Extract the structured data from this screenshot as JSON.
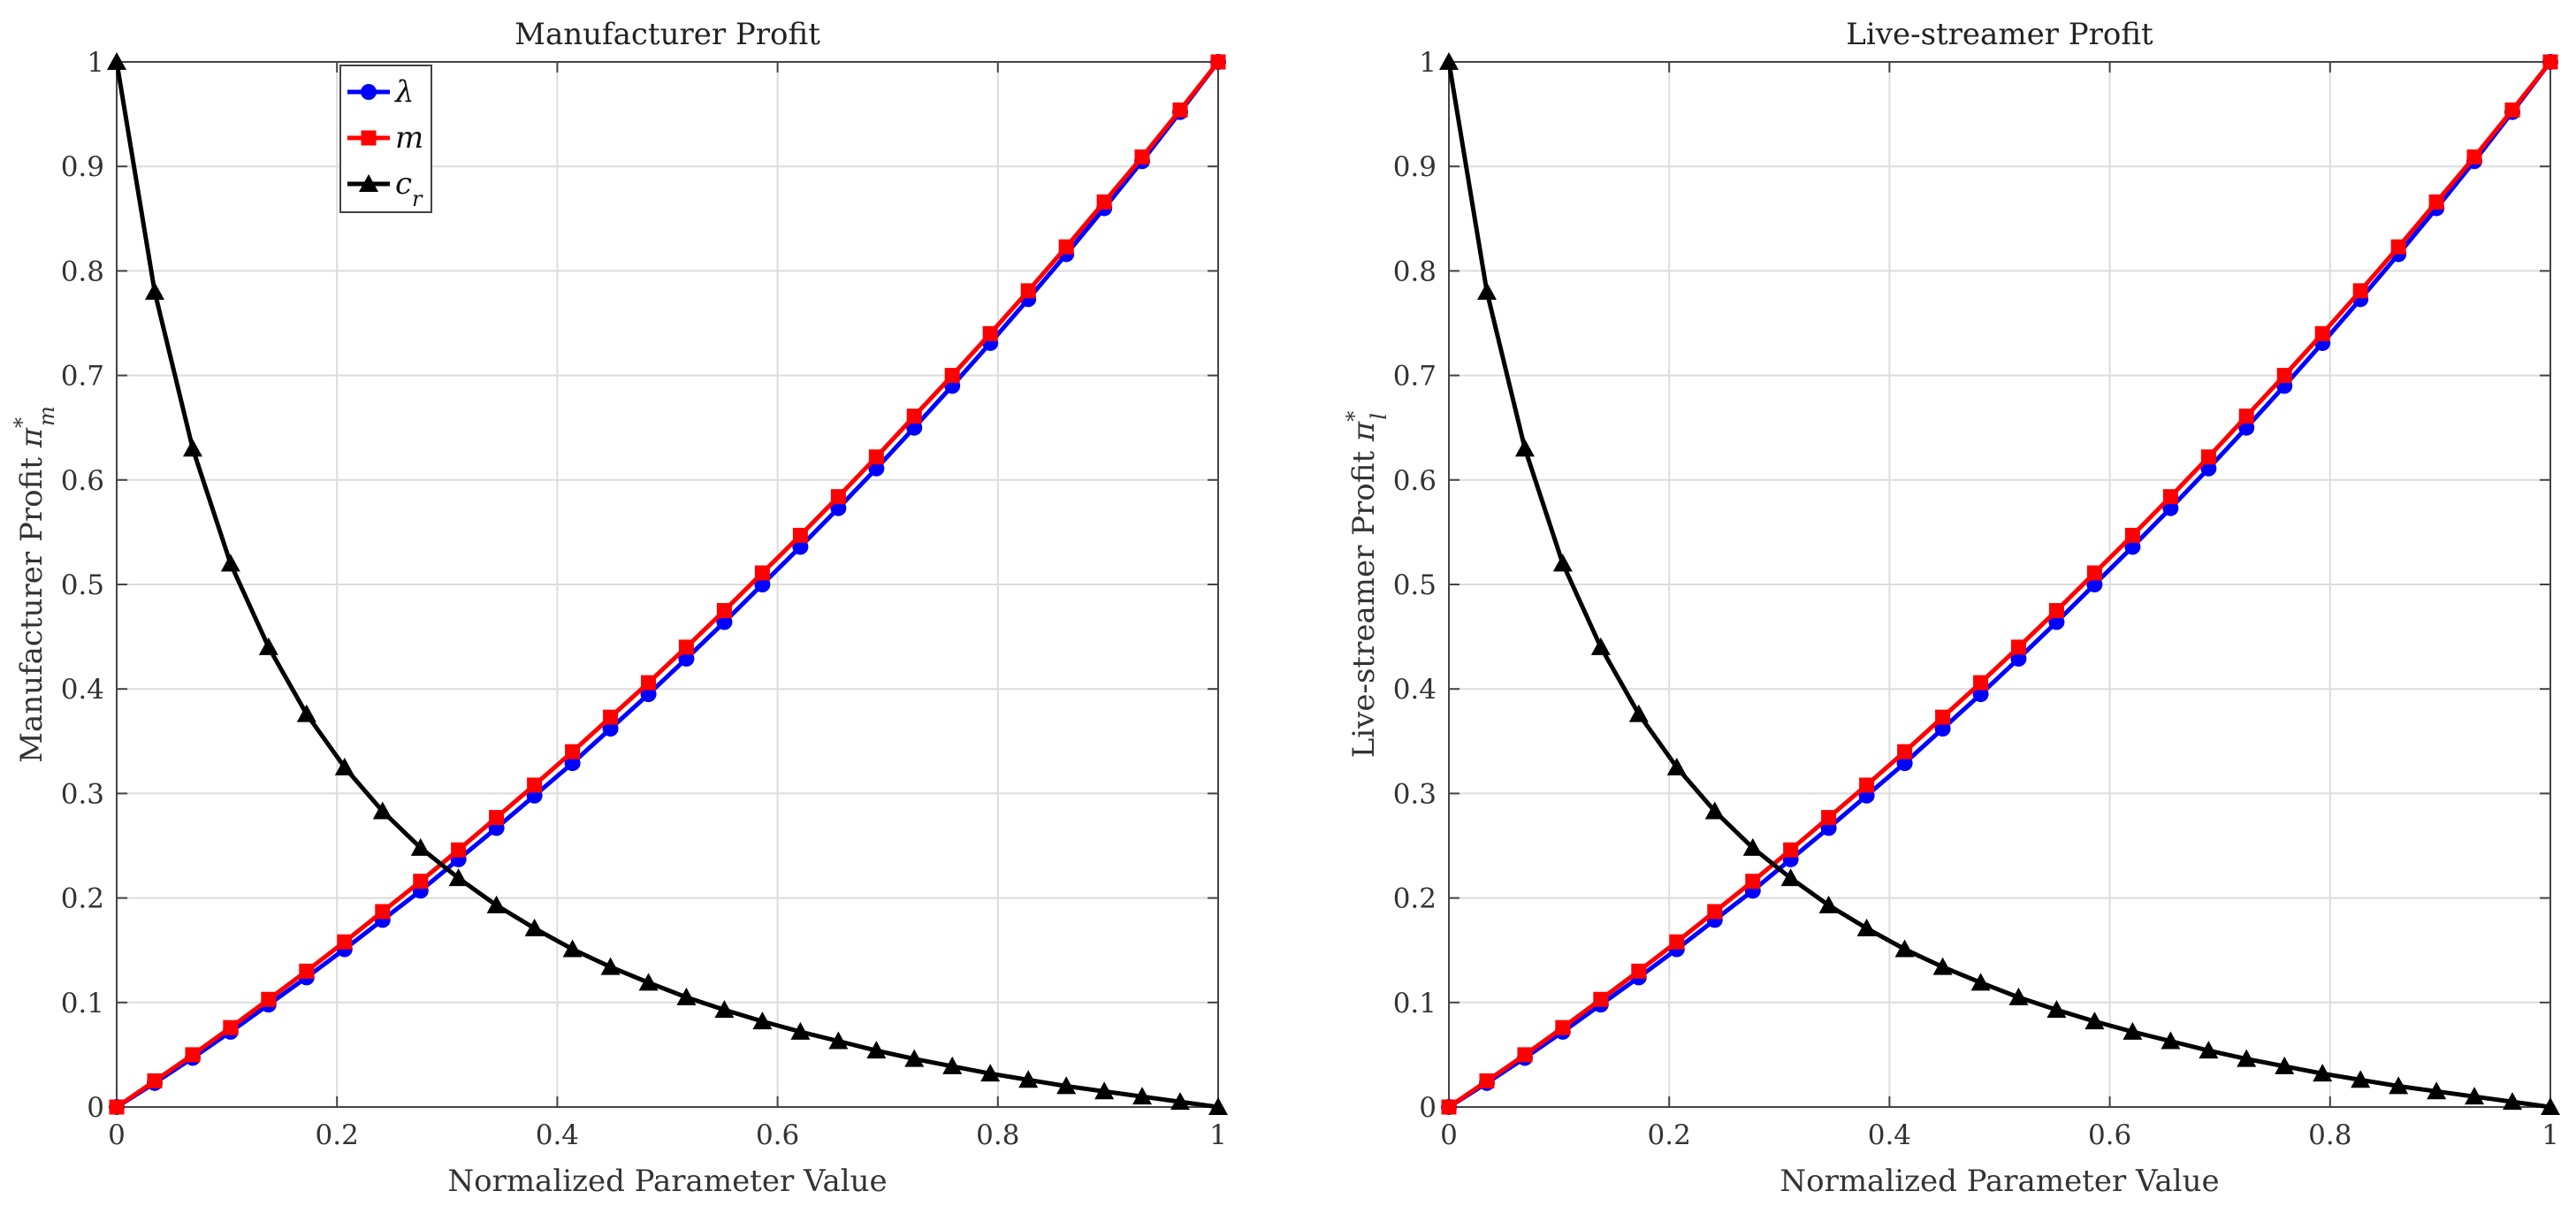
{
  "chart_data": [
    {
      "type": "line",
      "title": "Manufacturer Profit",
      "xlabel": "Normalized Parameter Value",
      "ylabel": "Manufacturer Profit π*_m",
      "ylabel_text": "Manufacturer Profit ",
      "ylabel_symbol": "π",
      "ylabel_sup": "*",
      "ylabel_sub": "m",
      "xlim": [
        0,
        1
      ],
      "ylim": [
        0,
        1
      ],
      "grid": true,
      "xticks": [
        0,
        0.2,
        0.4,
        0.6,
        0.8,
        1
      ],
      "xtick_labels": [
        "0",
        "0.2",
        "0.4",
        "0.6",
        "0.8",
        "1"
      ],
      "yticks": [
        0,
        0.1,
        0.2,
        0.3,
        0.4,
        0.5,
        0.6,
        0.7,
        0.8,
        0.9,
        1
      ],
      "ytick_labels": [
        "0",
        "0.1",
        "0.2",
        "0.3",
        "0.4",
        "0.5",
        "0.6",
        "0.7",
        "0.8",
        "0.9",
        "1"
      ],
      "legend": {
        "location": "top-left inside",
        "show": true
      },
      "x": [
        0,
        0.0345,
        0.069,
        0.1034,
        0.1379,
        0.1724,
        0.2069,
        0.2414,
        0.2759,
        0.3103,
        0.3448,
        0.3793,
        0.4138,
        0.4483,
        0.4828,
        0.5172,
        0.5517,
        0.5862,
        0.6207,
        0.6552,
        0.6897,
        0.7241,
        0.7586,
        0.7931,
        0.8276,
        0.8621,
        0.8966,
        0.931,
        0.9655,
        1
      ],
      "series": [
        {
          "name": "λ",
          "label_main": "λ",
          "label_sub": "",
          "color": "#0000ff",
          "marker": "circle",
          "values": [
            0,
            0.023,
            0.047,
            0.072,
            0.098,
            0.124,
            0.151,
            0.179,
            0.207,
            0.237,
            0.267,
            0.298,
            0.329,
            0.362,
            0.395,
            0.429,
            0.464,
            0.5,
            0.536,
            0.573,
            0.611,
            0.65,
            0.69,
            0.731,
            0.773,
            0.816,
            0.86,
            0.905,
            0.952,
            1
          ]
        },
        {
          "name": "m",
          "label_main": "m",
          "label_sub": "",
          "color": "#ff0000",
          "marker": "square",
          "values": [
            0,
            0.025,
            0.05,
            0.076,
            0.103,
            0.13,
            0.158,
            0.187,
            0.216,
            0.246,
            0.277,
            0.308,
            0.34,
            0.373,
            0.406,
            0.44,
            0.475,
            0.511,
            0.547,
            0.584,
            0.622,
            0.661,
            0.7,
            0.74,
            0.781,
            0.823,
            0.866,
            0.909,
            0.954,
            1
          ]
        },
        {
          "name": "c_r",
          "label_main": "c",
          "label_sub": "r",
          "color": "#000000",
          "marker": "triangle",
          "values": [
            1,
            0.78,
            0.63,
            0.52,
            0.44,
            0.376,
            0.325,
            0.283,
            0.248,
            0.219,
            0.193,
            0.171,
            0.151,
            0.134,
            0.119,
            0.105,
            0.093,
            0.082,
            0.072,
            0.063,
            0.054,
            0.046,
            0.039,
            0.032,
            0.026,
            0.02,
            0.015,
            0.01,
            0.005,
            0
          ]
        }
      ]
    },
    {
      "type": "line",
      "title": "Live-streamer Profit",
      "xlabel": "Normalized Parameter Value",
      "ylabel": "Live-streamer Profit π*_l",
      "ylabel_text": "Live-streamer Profit ",
      "ylabel_symbol": "π",
      "ylabel_sup": "*",
      "ylabel_sub": "l",
      "xlim": [
        0,
        1
      ],
      "ylim": [
        0,
        1
      ],
      "grid": true,
      "xticks": [
        0,
        0.2,
        0.4,
        0.6,
        0.8,
        1
      ],
      "xtick_labels": [
        "0",
        "0.2",
        "0.4",
        "0.6",
        "0.8",
        "1"
      ],
      "yticks": [
        0,
        0.1,
        0.2,
        0.3,
        0.4,
        0.5,
        0.6,
        0.7,
        0.8,
        0.9,
        1
      ],
      "ytick_labels": [
        "0",
        "0.1",
        "0.2",
        "0.3",
        "0.4",
        "0.5",
        "0.6",
        "0.7",
        "0.8",
        "0.9",
        "1"
      ],
      "legend": {
        "location": "none",
        "show": false
      },
      "x": [
        0,
        0.0345,
        0.069,
        0.1034,
        0.1379,
        0.1724,
        0.2069,
        0.2414,
        0.2759,
        0.3103,
        0.3448,
        0.3793,
        0.4138,
        0.4483,
        0.4828,
        0.5172,
        0.5517,
        0.5862,
        0.6207,
        0.6552,
        0.6897,
        0.7241,
        0.7586,
        0.7931,
        0.8276,
        0.8621,
        0.8966,
        0.931,
        0.9655,
        1
      ],
      "series": [
        {
          "name": "λ",
          "label_main": "λ",
          "label_sub": "",
          "color": "#0000ff",
          "marker": "circle",
          "values": [
            0,
            0.023,
            0.047,
            0.072,
            0.098,
            0.124,
            0.151,
            0.179,
            0.207,
            0.237,
            0.267,
            0.298,
            0.329,
            0.362,
            0.395,
            0.429,
            0.464,
            0.5,
            0.536,
            0.573,
            0.611,
            0.65,
            0.69,
            0.731,
            0.773,
            0.816,
            0.86,
            0.905,
            0.952,
            1
          ]
        },
        {
          "name": "m",
          "label_main": "m",
          "label_sub": "",
          "color": "#ff0000",
          "marker": "square",
          "values": [
            0,
            0.025,
            0.05,
            0.076,
            0.103,
            0.13,
            0.158,
            0.187,
            0.216,
            0.246,
            0.277,
            0.308,
            0.34,
            0.373,
            0.406,
            0.44,
            0.475,
            0.511,
            0.547,
            0.584,
            0.622,
            0.661,
            0.7,
            0.74,
            0.781,
            0.823,
            0.866,
            0.909,
            0.954,
            1
          ]
        },
        {
          "name": "c_r",
          "label_main": "c",
          "label_sub": "r",
          "color": "#000000",
          "marker": "triangle",
          "values": [
            1,
            0.78,
            0.63,
            0.52,
            0.44,
            0.376,
            0.325,
            0.283,
            0.248,
            0.219,
            0.193,
            0.171,
            0.151,
            0.134,
            0.119,
            0.105,
            0.093,
            0.082,
            0.072,
            0.063,
            0.054,
            0.046,
            0.039,
            0.032,
            0.026,
            0.02,
            0.015,
            0.01,
            0.005,
            0
          ]
        }
      ]
    }
  ]
}
